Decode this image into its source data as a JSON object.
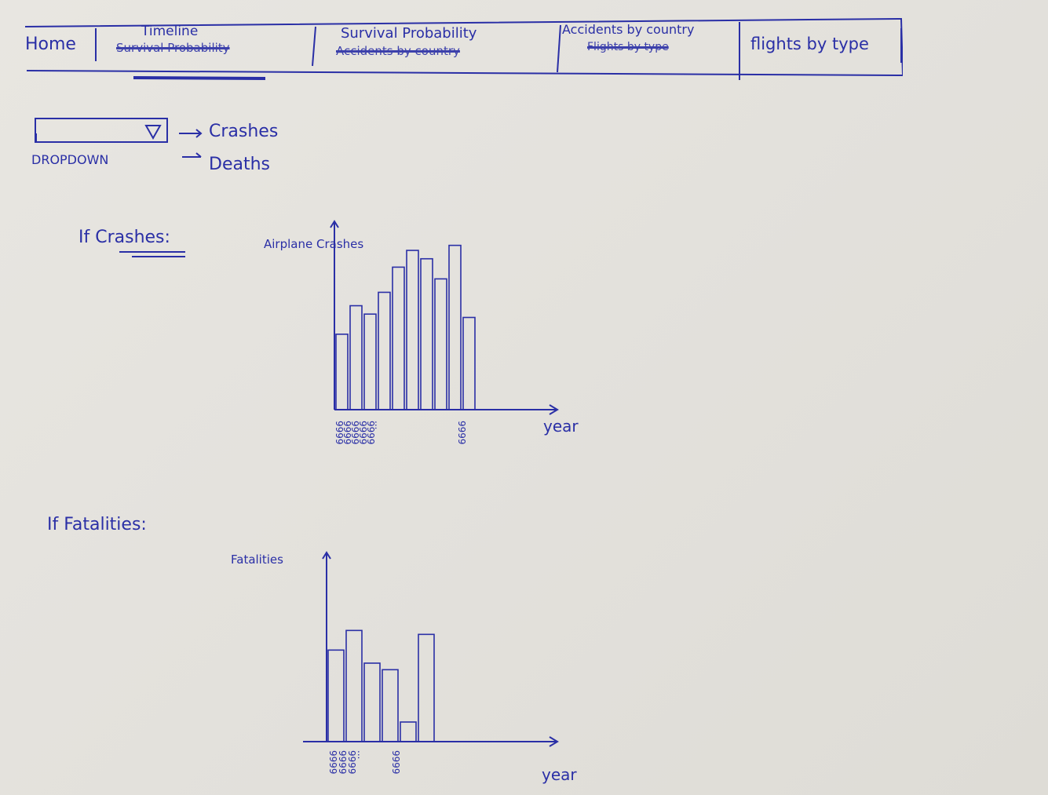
{
  "nav": {
    "home": "Home",
    "timeline": "Timeline",
    "timeline_struck": "Survival Probability",
    "survival": "Survival Probability",
    "survival_struck": "Accidents by country",
    "accidents": "Accidents by country",
    "accidents_struck": "Flights by type",
    "flights": "flights by type"
  },
  "dropdown": {
    "label": "DROPDOWN",
    "option_1": "Crashes",
    "option_2": "Deaths"
  },
  "section_crashes": {
    "heading": "If Crashes:"
  },
  "section_fatalities": {
    "heading": "If Fatalities:"
  },
  "chart_data": [
    {
      "type": "bar",
      "title": "",
      "ylabel": "Airplane Crashes",
      "xlabel": "year",
      "categories": [
        "9999",
        "9999",
        "9999",
        "9999",
        "9999",
        "",
        "",
        "",
        "",
        "9999"
      ],
      "tick_labels": [
        "9999",
        "9999",
        "9999",
        "9999",
        "9999",
        "...",
        "9999"
      ],
      "values": [
        45,
        62,
        57,
        70,
        85,
        95,
        90,
        78,
        98,
        55
      ],
      "ylim": [
        0,
        110
      ]
    },
    {
      "type": "bar",
      "title": "",
      "ylabel": "Fatalities",
      "xlabel": "year",
      "categories": [
        "9999",
        "9999",
        "9999",
        "",
        "",
        "9999"
      ],
      "tick_labels": [
        "9999",
        "9999",
        "9999",
        "...",
        "9999"
      ],
      "values": [
        70,
        85,
        60,
        55,
        15,
        82
      ],
      "ylim": [
        0,
        120
      ]
    }
  ],
  "colors": {
    "ink": "#2a2fa6",
    "paper": "#e6e4df"
  }
}
